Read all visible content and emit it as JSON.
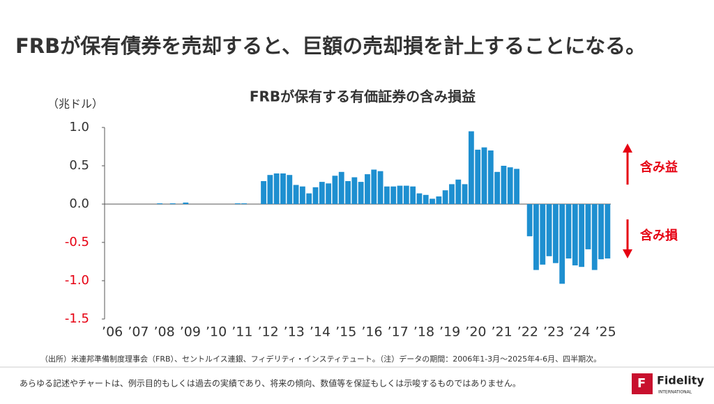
{
  "header": {
    "title": "FRBが保有債券を売却すると、巨額の売却損を計上することになる。"
  },
  "chart_data": {
    "type": "bar",
    "title": "FRBが保有する有価証券の含み損益",
    "y_unit": "（兆ドル）",
    "categories": [
      "’06",
      null,
      null,
      null,
      "’07",
      null,
      null,
      null,
      "’08",
      null,
      null,
      null,
      "’09",
      null,
      null,
      null,
      "’10",
      null,
      null,
      null,
      "’11",
      null,
      null,
      null,
      "’12",
      null,
      null,
      null,
      "’13",
      null,
      null,
      null,
      "’14",
      null,
      null,
      null,
      "’15",
      null,
      null,
      null,
      "’16",
      null,
      null,
      null,
      "’17",
      null,
      null,
      null,
      "’18",
      null,
      null,
      null,
      "’19",
      null,
      null,
      null,
      "’20",
      null,
      null,
      null,
      "’21",
      null,
      null,
      null,
      "’22",
      null,
      null,
      null,
      "’23",
      null,
      null,
      null,
      "’24",
      null,
      null,
      null,
      "’25",
      null
    ],
    "values": [
      0,
      0,
      0,
      0,
      0,
      0,
      0,
      0,
      0.01,
      0,
      0.01,
      0,
      0.02,
      0,
      0,
      0,
      0,
      0,
      0,
      0,
      0.01,
      0.01,
      0,
      0,
      0.3,
      0.38,
      0.4,
      0.4,
      0.38,
      0.25,
      0.23,
      0.14,
      0.22,
      0.29,
      0.27,
      0.37,
      0.42,
      0.3,
      0.35,
      0.29,
      0.39,
      0.45,
      0.43,
      0.23,
      0.23,
      0.24,
      0.24,
      0.23,
      0.14,
      0.12,
      0.07,
      0.1,
      0.18,
      0.26,
      0.32,
      0.26,
      0.95,
      0.71,
      0.74,
      0.7,
      0.42,
      0.5,
      0.48,
      0.46,
      0,
      -0.42,
      -0.86,
      -0.79,
      -0.68,
      -0.77,
      -1.04,
      -0.71,
      -0.8,
      -0.82,
      -0.59,
      -0.86,
      -0.72,
      -0.71
    ],
    "color": "#1e8fd0",
    "negative_tick_color": "#e60012",
    "ylim": [
      -1.5,
      1.0
    ],
    "yticks": [
      {
        "value": 1.0,
        "label": "1.0"
      },
      0.5,
      {
        "value": 0,
        "label": "0.0"
      },
      -0.5,
      {
        "value": -1.0,
        "label": "-1.0"
      },
      -1.5
    ],
    "annotations": [
      "含み益",
      "含み損"
    ]
  },
  "footer": {
    "source": "（出所）米連邦準備制度理事会（FRB）、セントルイス連銀、フィデリティ・インスティテュート。（注）データの期間：2006年1-3月～2025年4-6月、四半期次。",
    "disclaimer": "あらゆる記述やチャートは、例示目的もしくは過去の実績であり、将来の傾向、数値等を保証もしくは示唆するものではありません。",
    "logo": "Fidelity",
    "logo_sub": "INTERNATIONAL"
  }
}
